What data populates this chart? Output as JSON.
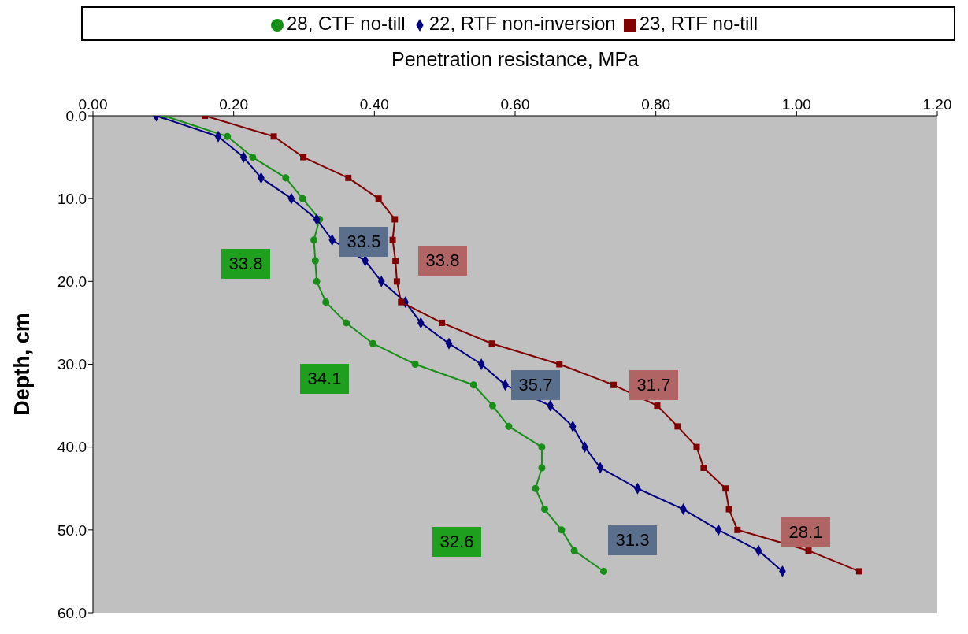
{
  "chart_data": {
    "type": "line",
    "xlabel": "Penetration resistance, MPa",
    "ylabel": "Depth, cm",
    "xlim": [
      0,
      1.2
    ],
    "xticks": [
      {
        "value": 0,
        "label": "0.00"
      },
      {
        "value": 0.2,
        "label": "0.20"
      },
      {
        "value": 0.4,
        "label": "0.40"
      },
      {
        "value": 0.6,
        "label": "0.60"
      },
      {
        "value": 0.8,
        "label": "0.80"
      },
      {
        "value": 1.0,
        "label": "1.00"
      },
      {
        "value": 1.2,
        "label": "1.20"
      }
    ],
    "ylim": [
      60,
      0
    ],
    "yticks": [
      {
        "value": 0,
        "label": "0.0"
      },
      {
        "value": 10,
        "label": "10.0"
      },
      {
        "value": 20,
        "label": "20.0"
      },
      {
        "value": 30,
        "label": "30.0"
      },
      {
        "value": 40,
        "label": "40.0"
      },
      {
        "value": 50,
        "label": "50.0"
      },
      {
        "value": 60,
        "label": "60.0"
      }
    ],
    "grid": false,
    "legend": "top",
    "line_style": "solid",
    "series": [
      {
        "name": "28, CTF no-till",
        "color": "#178f17",
        "marker": "circle",
        "x": [
          0.101,
          0.191,
          0.227,
          0.274,
          0.298,
          0.322,
          0.314,
          0.316,
          0.318,
          0.331,
          0.36,
          0.398,
          0.458,
          0.541,
          0.568,
          0.591,
          0.638,
          0.638,
          0.629,
          0.642,
          0.666,
          0.684,
          0.726
        ],
        "values": [
          0,
          2.5,
          5,
          7.5,
          10,
          12.5,
          15,
          17.5,
          20,
          22.5,
          25,
          27.5,
          30,
          32.5,
          35,
          37.5,
          40,
          42.5,
          45,
          47.5,
          50,
          52.5,
          55
        ]
      },
      {
        "name": "22, RTF non-inversion",
        "color": "#000080",
        "marker": "diamond",
        "x": [
          0.09,
          0.178,
          0.214,
          0.239,
          0.282,
          0.318,
          0.34,
          0.387,
          0.41,
          0.444,
          0.466,
          0.506,
          0.552,
          0.586,
          0.65,
          0.682,
          0.699,
          0.721,
          0.774,
          0.839,
          0.889,
          0.946,
          0.98
        ],
        "values": [
          0,
          2.5,
          5,
          7.5,
          10,
          12.5,
          15,
          17.5,
          20,
          22.5,
          25,
          27.5,
          30,
          32.5,
          35,
          37.5,
          40,
          42.5,
          45,
          47.5,
          50,
          52.5,
          55
        ]
      },
      {
        "name": "23, RTF no-till",
        "color": "#800000",
        "marker": "square",
        "x": [
          0.159,
          0.257,
          0.299,
          0.363,
          0.406,
          0.429,
          0.426,
          0.43,
          0.432,
          0.438,
          0.496,
          0.567,
          0.663,
          0.74,
          0.802,
          0.831,
          0.858,
          0.868,
          0.899,
          0.904,
          0.916,
          1.017,
          1.089
        ],
        "values": [
          0,
          2.5,
          5,
          7.5,
          10,
          12.5,
          15,
          17.5,
          20,
          22.5,
          25,
          27.5,
          30,
          32.5,
          35,
          37.5,
          40,
          42.5,
          45,
          47.5,
          50,
          52.5,
          55
        ]
      }
    ],
    "annotations": [
      "33.8",
      "33.5",
      "33.8",
      "34.1",
      "35.7",
      "31.7",
      "32.6",
      "31.3",
      "28.1"
    ]
  }
}
